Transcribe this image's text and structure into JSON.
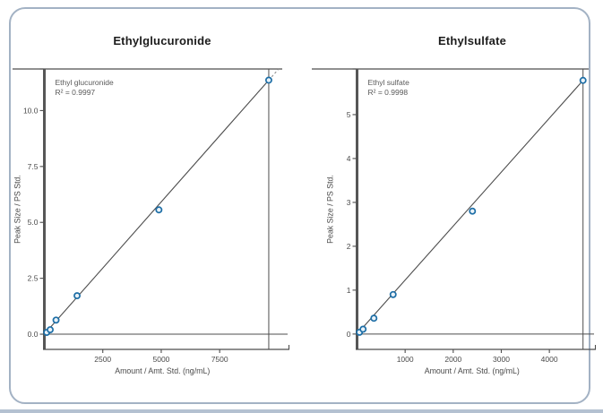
{
  "page": {
    "card": {
      "border_color": "#a3b2c4",
      "background": "#ffffff"
    },
    "bottom_strip_color": "#b4c1d1"
  },
  "colors": {
    "axis": "#4d4d4d",
    "tick_text": "#4a4a4a",
    "annotation_text": "#5a5a5a",
    "marker_stroke": "#1d6ea6",
    "marker_fill": "#eaf2f8",
    "dashed_extension": "#8b8b8b"
  },
  "chart_data": [
    {
      "type": "scatter",
      "title": "Ethylglucuronide",
      "annotation": [
        "Ethyl glucuronide",
        "R² = 0.9997"
      ],
      "xlabel": "Amount / Amt. Std. (ng/mL)",
      "ylabel": "Peak Size / PS Std.",
      "x_ticks": [
        2500,
        5000,
        7500
      ],
      "x_tick_labels": [
        "2500",
        "5000",
        "7500"
      ],
      "y_ticks": [
        0.0,
        2.5,
        5.0,
        7.5,
        10.0
      ],
      "y_tick_labels": [
        "0.0",
        "2.5",
        "5.0",
        "7.5",
        "10.0"
      ],
      "xlim": [
        0,
        10100
      ],
      "ylim": [
        -0.68,
        11.86
      ],
      "grid": false,
      "legend_position": "top-left-annotation",
      "points": {
        "x": [
          100,
          250,
          500,
          1400,
          4900,
          9600
        ],
        "y": [
          0.08,
          0.2,
          0.63,
          1.72,
          5.56,
          11.36
        ]
      },
      "fit_line": {
        "x1": 0,
        "y1": 0,
        "x2": 9600,
        "y2": 11.36,
        "extend_dashed": true
      },
      "crosshair_x": 9600
    },
    {
      "type": "scatter",
      "title": "Ethylsulfate",
      "annotation": [
        "Ethyl sulfate",
        "R² = 0.9998"
      ],
      "xlabel": "Amount / Amt. Std. (ng/mL)",
      "ylabel": "Peak Size / PS Std.",
      "x_ticks": [
        1000,
        2000,
        3000,
        4000
      ],
      "x_tick_labels": [
        "1000",
        "2000",
        "3000",
        "4000"
      ],
      "y_ticks": [
        0,
        1,
        2,
        3,
        4,
        5
      ],
      "y_tick_labels": [
        "0",
        "1",
        "2",
        "3",
        "4",
        "5"
      ],
      "xlim": [
        0,
        4780
      ],
      "ylim": [
        -0.35,
        6.04
      ],
      "grid": false,
      "legend_position": "top-left-annotation",
      "points": {
        "x": [
          50,
          125,
          350,
          750,
          2400,
          4700
        ],
        "y": [
          0.04,
          0.11,
          0.36,
          0.9,
          2.8,
          5.78
        ]
      },
      "fit_line": {
        "x1": 0,
        "y1": 0,
        "x2": 4700,
        "y2": 5.78,
        "extend_dashed": false
      },
      "crosshair_x": 4700
    }
  ]
}
